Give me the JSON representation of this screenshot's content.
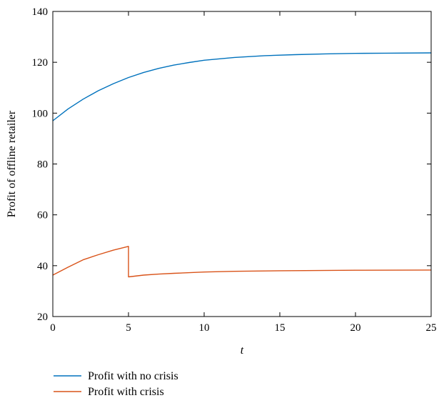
{
  "chart_data": {
    "type": "line",
    "xlabel": "t",
    "ylabel": "Profit of offline retailer",
    "xlim": [
      0,
      25
    ],
    "ylim": [
      20,
      140
    ],
    "xticks": [
      0,
      5,
      10,
      15,
      20,
      25
    ],
    "yticks": [
      20,
      40,
      60,
      80,
      100,
      120,
      140
    ],
    "grid": false,
    "legend_position": "bottom-left",
    "series": [
      {
        "name": "Profit with no crisis",
        "color": "#0072BD",
        "x": [
          0,
          1,
          2,
          3,
          4,
          5,
          6,
          7,
          8,
          9,
          10,
          12,
          14,
          16,
          18,
          20,
          22,
          25
        ],
        "y": [
          97,
          101.6,
          105.5,
          108.8,
          111.6,
          114.0,
          116.0,
          117.6,
          118.9,
          119.9,
          120.8,
          121.9,
          122.6,
          123.0,
          123.3,
          123.5,
          123.6,
          123.7
        ]
      },
      {
        "name": "Profit with crisis",
        "color": "#D95319",
        "x": [
          0,
          1,
          2,
          3,
          4,
          5,
          5,
          6,
          7,
          8,
          10,
          12,
          15,
          20,
          25
        ],
        "y": [
          36.3,
          39.4,
          42.3,
          44.3,
          46.1,
          47.6,
          35.6,
          36.3,
          36.7,
          37.0,
          37.5,
          37.8,
          38.0,
          38.2,
          38.3
        ]
      }
    ]
  }
}
